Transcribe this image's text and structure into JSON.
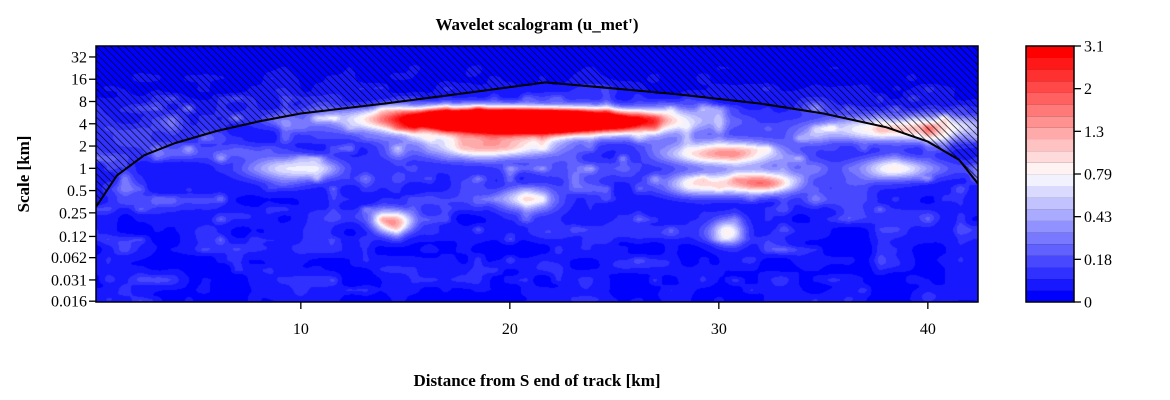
{
  "chart_data": {
    "type": "heatmap",
    "title": "Wavelet scalogram (u_met')",
    "xlabel": "Distance from S end of track [km]",
    "ylabel": "Scale [km]",
    "x_range": [
      0.2,
      42.4
    ],
    "x_ticks": [
      10,
      20,
      30,
      40
    ],
    "x_tick_labels": [
      "10",
      "20",
      "30",
      "40"
    ],
    "y_scale": "log2",
    "y_range": [
      0.0156,
      45
    ],
    "y_ticks": [
      0.016,
      0.031,
      0.062,
      0.12,
      0.25,
      0.5,
      1,
      2,
      4,
      8,
      16,
      32
    ],
    "y_tick_labels": [
      "0.016",
      "0.031",
      "0.062",
      "0.12",
      "0.25",
      "0.5",
      "1",
      "2",
      "4",
      "8",
      "16",
      "32"
    ],
    "colorbar": {
      "tick_labels": [
        "0",
        "0.18",
        "0.43",
        "0.79",
        "1.3",
        "2",
        "3.1"
      ],
      "range": [
        0,
        3.1
      ],
      "colors": [
        "#0000ff",
        "#ffffff",
        "#ff0000"
      ],
      "levels": 22
    },
    "cone_of_influence": {
      "x": [
        0.2,
        1.2,
        2.5,
        4,
        6,
        8,
        10,
        14,
        18,
        21.7,
        25,
        28,
        32,
        35,
        38,
        40,
        41.5,
        42.4
      ],
      "scale": [
        0.3,
        0.8,
        1.5,
        2.2,
        3.2,
        4.3,
        5.5,
        7.5,
        10.5,
        14.5,
        12,
        10,
        7.5,
        5.5,
        3.6,
        2.3,
        1.3,
        0.62
      ]
    },
    "hotspots": [
      {
        "x": 20.2,
        "scale": 4.2,
        "value": 3.1
      },
      {
        "x": 17.5,
        "scale": 4.8,
        "value": 2.6
      },
      {
        "x": 23.5,
        "scale": 4.4,
        "value": 2.5
      },
      {
        "x": 19.0,
        "scale": 2.0,
        "value": 1.8
      },
      {
        "x": 30.3,
        "scale": 1.6,
        "value": 1.9
      },
      {
        "x": 38.7,
        "scale": 3.4,
        "value": 1.6
      },
      {
        "x": 14.4,
        "scale": 0.19,
        "value": 2.0
      },
      {
        "x": 31.9,
        "scale": 0.65,
        "value": 2.0
      },
      {
        "x": 30.4,
        "scale": 0.14,
        "value": 1.5
      },
      {
        "x": 28.9,
        "scale": 0.62,
        "value": 1.3
      },
      {
        "x": 20.6,
        "scale": 0.39,
        "value": 1.2
      },
      {
        "x": 9.5,
        "scale": 1.0,
        "value": 1.2
      },
      {
        "x": 38.3,
        "scale": 1.0,
        "value": 1.1
      }
    ]
  }
}
